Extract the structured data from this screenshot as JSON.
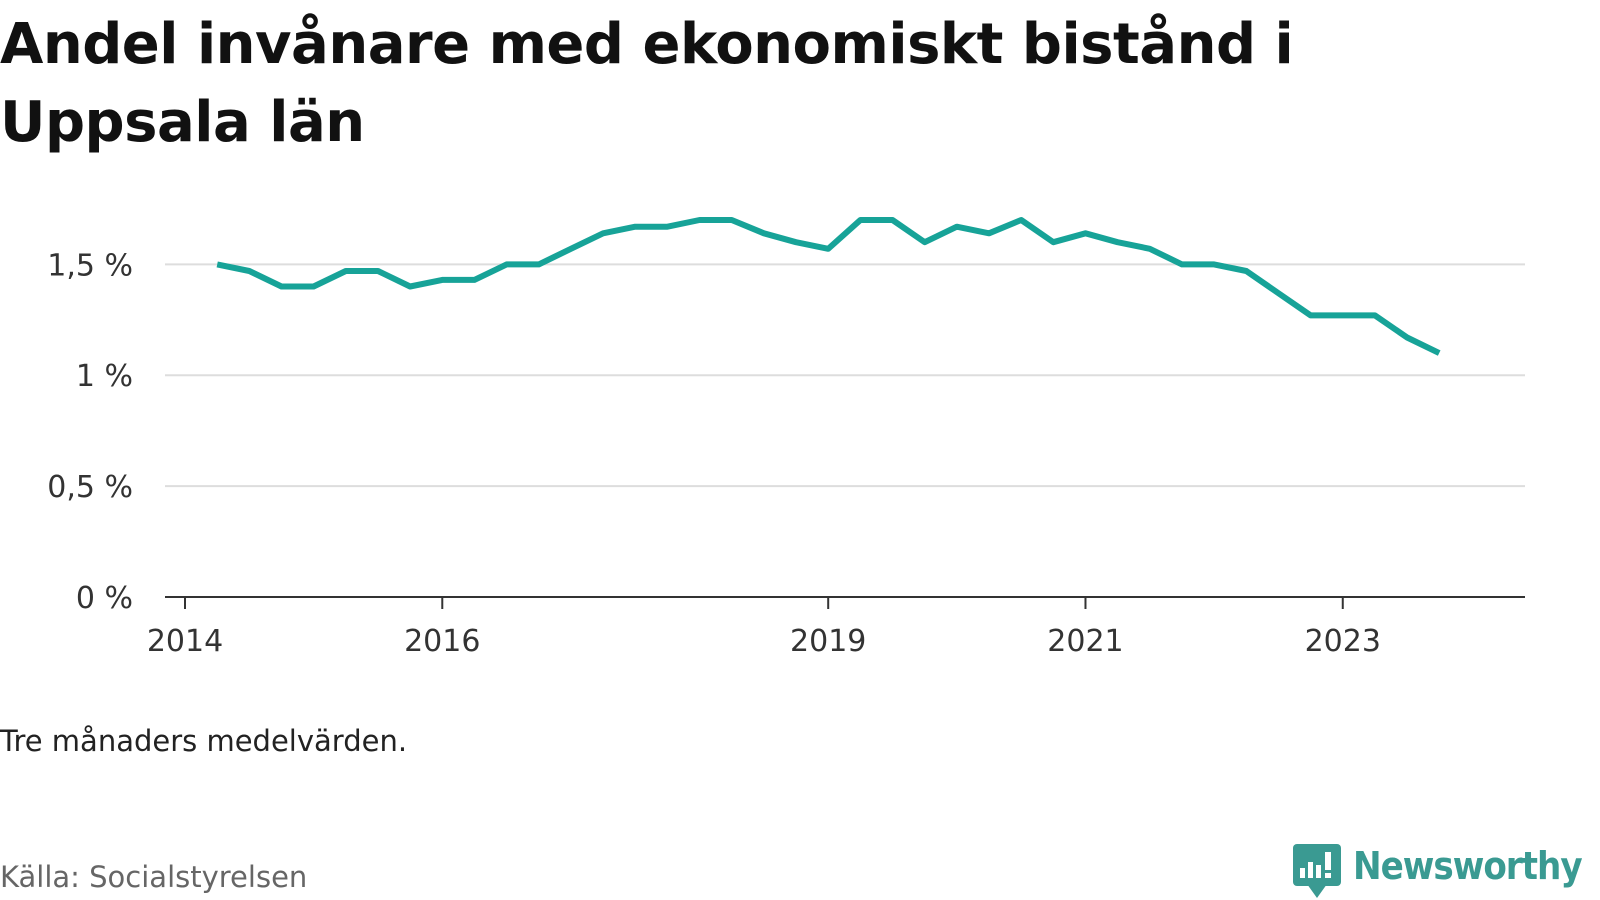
{
  "title": "Andel invånare med ekonomiskt bistånd i Uppsala län",
  "note": "Tre månaders medelvärden.",
  "source": "Källa: Socialstyrelsen",
  "brand": {
    "name": "Newsworthy",
    "color": "#3a9a92",
    "icon": "newsworthy-logo-icon"
  },
  "chart_data": {
    "type": "line",
    "title": "Andel invånare med ekonomiskt bistånd i Uppsala län",
    "xlabel": "",
    "ylabel": "",
    "ylim": [
      0,
      1.7
    ],
    "xlim": [
      "2014-01",
      "2024-06"
    ],
    "y_ticks": [
      {
        "value": 0,
        "label": "0 %"
      },
      {
        "value": 0.5,
        "label": "0,5 %"
      },
      {
        "value": 1,
        "label": "1 %"
      },
      {
        "value": 1.5,
        "label": "1,5 %"
      }
    ],
    "x_ticks": [
      {
        "value": "2014-01",
        "label": "2014"
      },
      {
        "value": "2016-01",
        "label": "2016"
      },
      {
        "value": "2019-01",
        "label": "2019"
      },
      {
        "value": "2021-01",
        "label": "2021"
      },
      {
        "value": "2023-01",
        "label": "2023"
      }
    ],
    "grid": true,
    "line_color": "#17a398",
    "series": [
      {
        "x": [
          "2014-04",
          "2014-07",
          "2014-10",
          "2015-01",
          "2015-04",
          "2015-07",
          "2015-10",
          "2016-01",
          "2016-04",
          "2016-07",
          "2016-10",
          "2017-01",
          "2017-04",
          "2017-07",
          "2017-10",
          "2018-01",
          "2018-04",
          "2018-07",
          "2018-10",
          "2019-01",
          "2019-04",
          "2019-07",
          "2019-10",
          "2020-01",
          "2020-04",
          "2020-07",
          "2020-10",
          "2021-01",
          "2021-04",
          "2021-07",
          "2021-10",
          "2022-01",
          "2022-04",
          "2022-07",
          "2022-10",
          "2023-01",
          "2023-04",
          "2023-07",
          "2023-10"
        ],
        "values": [
          1.5,
          1.47,
          1.4,
          1.4,
          1.47,
          1.47,
          1.4,
          1.43,
          1.43,
          1.5,
          1.5,
          1.57,
          1.64,
          1.67,
          1.67,
          1.7,
          1.7,
          1.64,
          1.6,
          1.57,
          1.7,
          1.7,
          1.6,
          1.67,
          1.64,
          1.7,
          1.6,
          1.64,
          1.6,
          1.57,
          1.5,
          1.5,
          1.47,
          1.37,
          1.27,
          1.27,
          1.27,
          1.17,
          1.1
        ]
      }
    ]
  }
}
